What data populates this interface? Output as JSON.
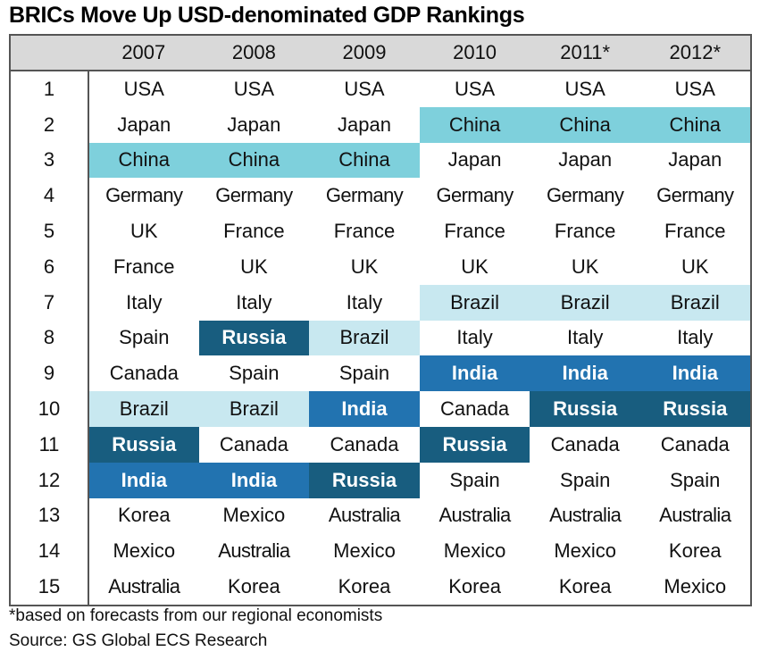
{
  "title": "BRICs Move Up USD-denominated GDP Rankings",
  "footnote": "*based on forecasts from our regional economists",
  "source": "Source: GS Global ECS Research",
  "colors": {
    "China": "#7ed0dc",
    "Brazil": "#c8e8f0",
    "India": "#2273b0",
    "Russia": "#185d7f",
    "header_bg": "#d9d9d9"
  },
  "chart_data": {
    "type": "table",
    "title": "BRICs Move Up USD-denominated GDP Rankings",
    "columns": [
      "2007",
      "2008",
      "2009",
      "2010",
      "2011*",
      "2012*"
    ],
    "ranks": [
      "1",
      "2",
      "3",
      "4",
      "5",
      "6",
      "7",
      "8",
      "9",
      "10",
      "11",
      "12",
      "13",
      "14",
      "15"
    ],
    "rows": [
      [
        "USA",
        "USA",
        "USA",
        "USA",
        "USA",
        "USA"
      ],
      [
        "Japan",
        "Japan",
        "Japan",
        "China",
        "China",
        "China"
      ],
      [
        "China",
        "China",
        "China",
        "Japan",
        "Japan",
        "Japan"
      ],
      [
        "Germany",
        "Germany",
        "Germany",
        "Germany",
        "Germany",
        "Germany"
      ],
      [
        "UK",
        "France",
        "France",
        "France",
        "France",
        "France"
      ],
      [
        "France",
        "UK",
        "UK",
        "UK",
        "UK",
        "UK"
      ],
      [
        "Italy",
        "Italy",
        "Italy",
        "Brazil",
        "Brazil",
        "Brazil"
      ],
      [
        "Spain",
        "Russia",
        "Brazil",
        "Italy",
        "Italy",
        "Italy"
      ],
      [
        "Canada",
        "Spain",
        "Spain",
        "India",
        "India",
        "India"
      ],
      [
        "Brazil",
        "Brazil",
        "India",
        "Canada",
        "Russia",
        "Russia"
      ],
      [
        "Russia",
        "Canada",
        "Canada",
        "Russia",
        "Canada",
        "Canada"
      ],
      [
        "India",
        "India",
        "Russia",
        "Spain",
        "Spain",
        "Spain"
      ],
      [
        "Korea",
        "Mexico",
        "Australia",
        "Australia",
        "Australia",
        "Australia"
      ],
      [
        "Mexico",
        "Australia",
        "Mexico",
        "Mexico",
        "Mexico",
        "Korea"
      ],
      [
        "Australia",
        "Korea",
        "Korea",
        "Korea",
        "Korea",
        "Mexico"
      ]
    ]
  }
}
